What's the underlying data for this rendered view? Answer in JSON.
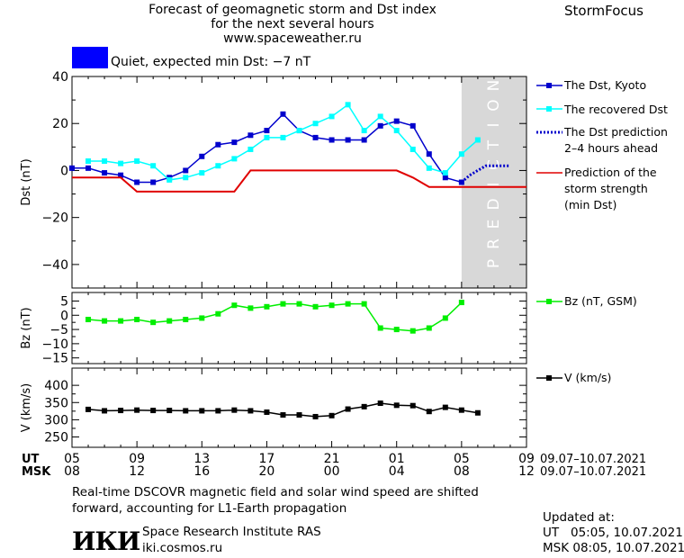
{
  "header": {
    "title_lines": [
      "Forecast of geomagnetic storm and Dst index",
      "for the next several hours",
      "www.spaceweather.ru"
    ],
    "brand": "StormFocus",
    "status_text": "Quiet, expected min Dst: −7 nT",
    "status_color": "#0000ff"
  },
  "legend": {
    "dst_kyoto": "The Dst, Kyoto",
    "dst_recovered": "The recovered Dst",
    "dst_prediction": [
      "The Dst prediction",
      "2–4 hours ahead"
    ],
    "storm_strength": [
      "Prediction of the",
      "storm strength",
      "(min Dst)"
    ],
    "bz": "Bz (nT, GSM)",
    "v": "V (km/s)"
  },
  "prediction_label": "PREDICTION",
  "time_axis": {
    "ut_label": "UT",
    "msk_label": "MSK",
    "ut_ticks": [
      "05",
      "09",
      "13",
      "17",
      "21",
      "01",
      "05",
      "09"
    ],
    "msk_ticks": [
      "08",
      "12",
      "16",
      "20",
      "00",
      "04",
      "08",
      "12"
    ],
    "ut_range": "09.07–10.07.2021",
    "msk_range": "09.07–10.07.2021"
  },
  "footer": {
    "note_lines": [
      "Real-time DSCOVR magnetic field and solar wind speed are shifted",
      "forward, accounting for L1-Earth propagation"
    ],
    "institute": "Space Research Institute RAS",
    "site": "iki.cosmos.ru",
    "logo": "ИКИ",
    "updated_label": "Updated at:",
    "updated_ut": "UT   05:05, 10.07.2021",
    "updated_msk": "MSK 08:05, 10.07.2021"
  },
  "colors": {
    "dst_kyoto": "#0000cc",
    "dst_recovered": "#00ffff",
    "dst_prediction": "#0000cc",
    "storm_strength": "#e00000",
    "bz": "#00ee00",
    "v": "#000000",
    "prediction_band": "#d8d8d8"
  },
  "chart_data": [
    {
      "type": "line",
      "ylabel": "Dst (nT)",
      "x_unit": "hours from 05 UT, 09.07.2021",
      "xlim": [
        0,
        28
      ],
      "ylim": [
        -50,
        40
      ],
      "yticks": [
        40,
        20,
        0,
        -20,
        -40
      ],
      "prediction_band": [
        24,
        28
      ],
      "series": [
        {
          "name": "The Dst, Kyoto",
          "key": "dst_kyoto",
          "marker": "square",
          "x": [
            0,
            1,
            2,
            3,
            4,
            5,
            6,
            7,
            8,
            9,
            10,
            11,
            12,
            13,
            14,
            15,
            16,
            17,
            18,
            19,
            20,
            21,
            22,
            23,
            24
          ],
          "y": [
            1,
            1,
            -1,
            -2,
            -5,
            -5,
            -3,
            0,
            6,
            11,
            12,
            15,
            17,
            24,
            17,
            14,
            13,
            13,
            13,
            19,
            21,
            19,
            7,
            -3,
            -5
          ]
        },
        {
          "name": "The recovered Dst",
          "key": "dst_recovered",
          "marker": "square",
          "x": [
            1,
            2,
            3,
            4,
            5,
            6,
            7,
            8,
            9,
            10,
            11,
            12,
            13,
            14,
            15,
            16,
            17,
            18,
            19,
            20,
            21,
            22,
            23,
            24,
            25
          ],
          "y": [
            4,
            4,
            3,
            4,
            2,
            -4,
            -3,
            -1,
            2,
            5,
            9,
            14,
            14,
            17,
            20,
            23,
            28,
            17,
            23,
            17,
            9,
            1,
            -1,
            7,
            13
          ]
        },
        {
          "name": "The Dst prediction",
          "key": "dst_prediction",
          "dash": true,
          "x": [
            24,
            24.5,
            25,
            25.5,
            26,
            27
          ],
          "y": [
            -5,
            -2,
            0,
            2,
            2,
            2
          ]
        },
        {
          "name": "Prediction of the storm strength",
          "key": "storm_strength",
          "step": true,
          "x": [
            0,
            3,
            4,
            10,
            11,
            20,
            21,
            22,
            28
          ],
          "y": [
            -3,
            -3,
            -9,
            -9,
            0,
            0,
            -3,
            -7,
            -7
          ]
        }
      ]
    },
    {
      "type": "line",
      "ylabel": "Bz (nT)",
      "x_unit": "hours from 05 UT, 09.07.2021",
      "xlim": [
        0,
        28
      ],
      "ylim": [
        -17,
        8
      ],
      "yticks": [
        5,
        0,
        -5,
        -10,
        -15
      ],
      "series": [
        {
          "name": "Bz (nT, GSM)",
          "key": "bz",
          "marker": "square",
          "x": [
            1,
            2,
            3,
            4,
            5,
            6,
            7,
            8,
            9,
            10,
            11,
            12,
            13,
            14,
            15,
            16,
            17,
            18,
            19,
            20,
            21,
            22,
            23,
            24,
            25
          ],
          "y": [
            -1.5,
            -2,
            -2,
            -1.5,
            -2.5,
            -2,
            -1.5,
            -1,
            0.5,
            3.5,
            2.5,
            3,
            4,
            4,
            3,
            3.5,
            4,
            4,
            -4.5,
            -5,
            -5.5,
            -4.5,
            -1,
            4.5,
            null
          ]
        }
      ]
    },
    {
      "type": "line",
      "ylabel": "V (km/s)",
      "x_unit": "hours from 05 UT, 09.07.2021",
      "xlim": [
        0,
        28
      ],
      "ylim": [
        220,
        450
      ],
      "yticks": [
        400,
        350,
        300,
        250
      ],
      "series": [
        {
          "name": "V (km/s)",
          "key": "v",
          "marker": "square",
          "x": [
            1,
            2,
            3,
            4,
            5,
            6,
            7,
            8,
            9,
            10,
            11,
            12,
            13,
            14,
            15,
            16,
            17,
            18,
            19,
            20,
            21,
            22,
            23,
            24,
            25
          ],
          "y": [
            330,
            326,
            327,
            328,
            327,
            327,
            326,
            326,
            326,
            328,
            326,
            322,
            314,
            314,
            309,
            312,
            331,
            338,
            348,
            342,
            341,
            324,
            336,
            328,
            320
          ]
        }
      ]
    }
  ]
}
